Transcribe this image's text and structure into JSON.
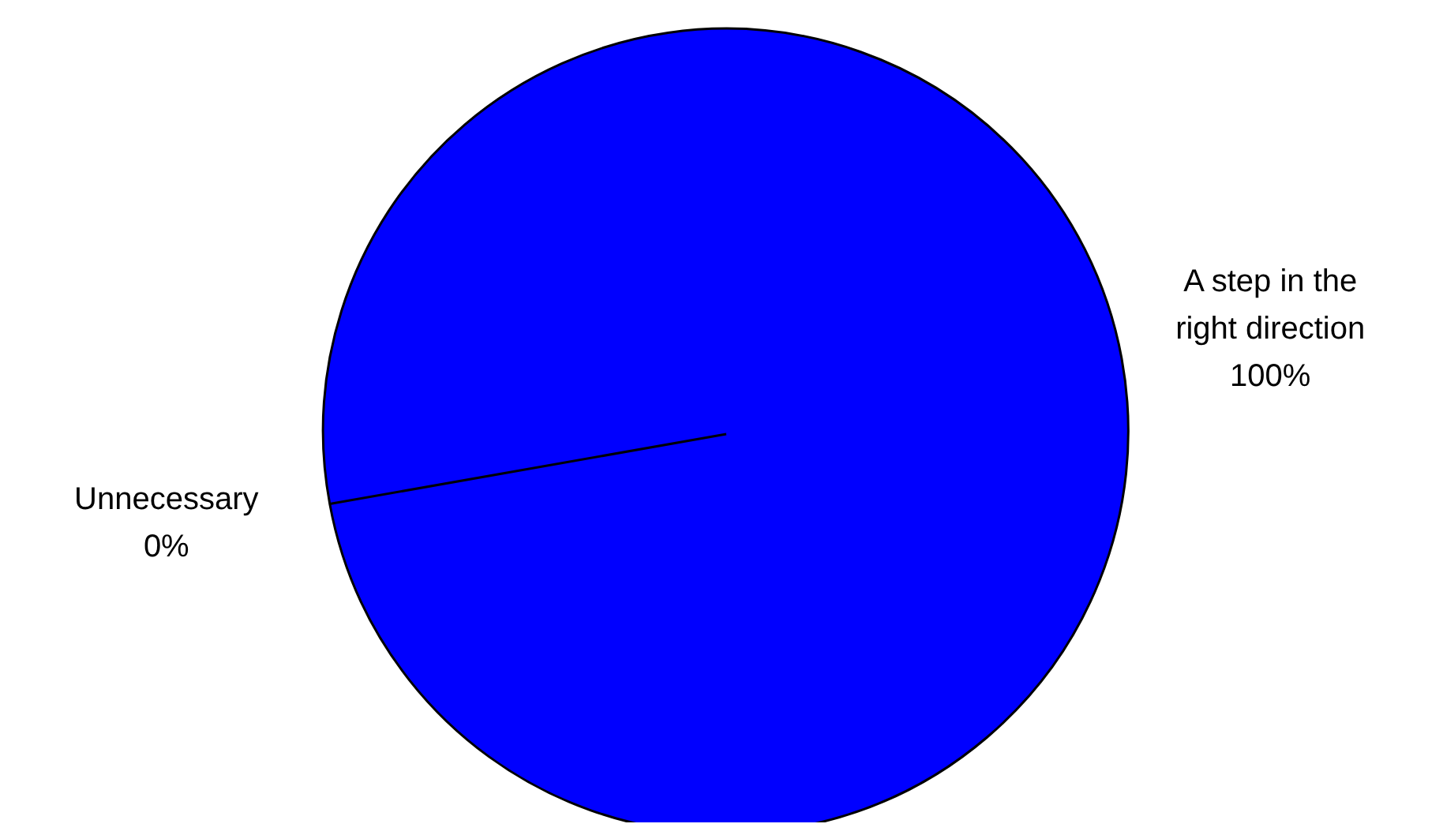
{
  "chart_data": {
    "type": "pie",
    "categories": [
      "A step in the right direction",
      "Unnecessary"
    ],
    "values": [
      100,
      0
    ],
    "colors": [
      "#0000ff",
      "#ff0000"
    ],
    "value_labels": [
      "100%",
      "0%"
    ]
  }
}
